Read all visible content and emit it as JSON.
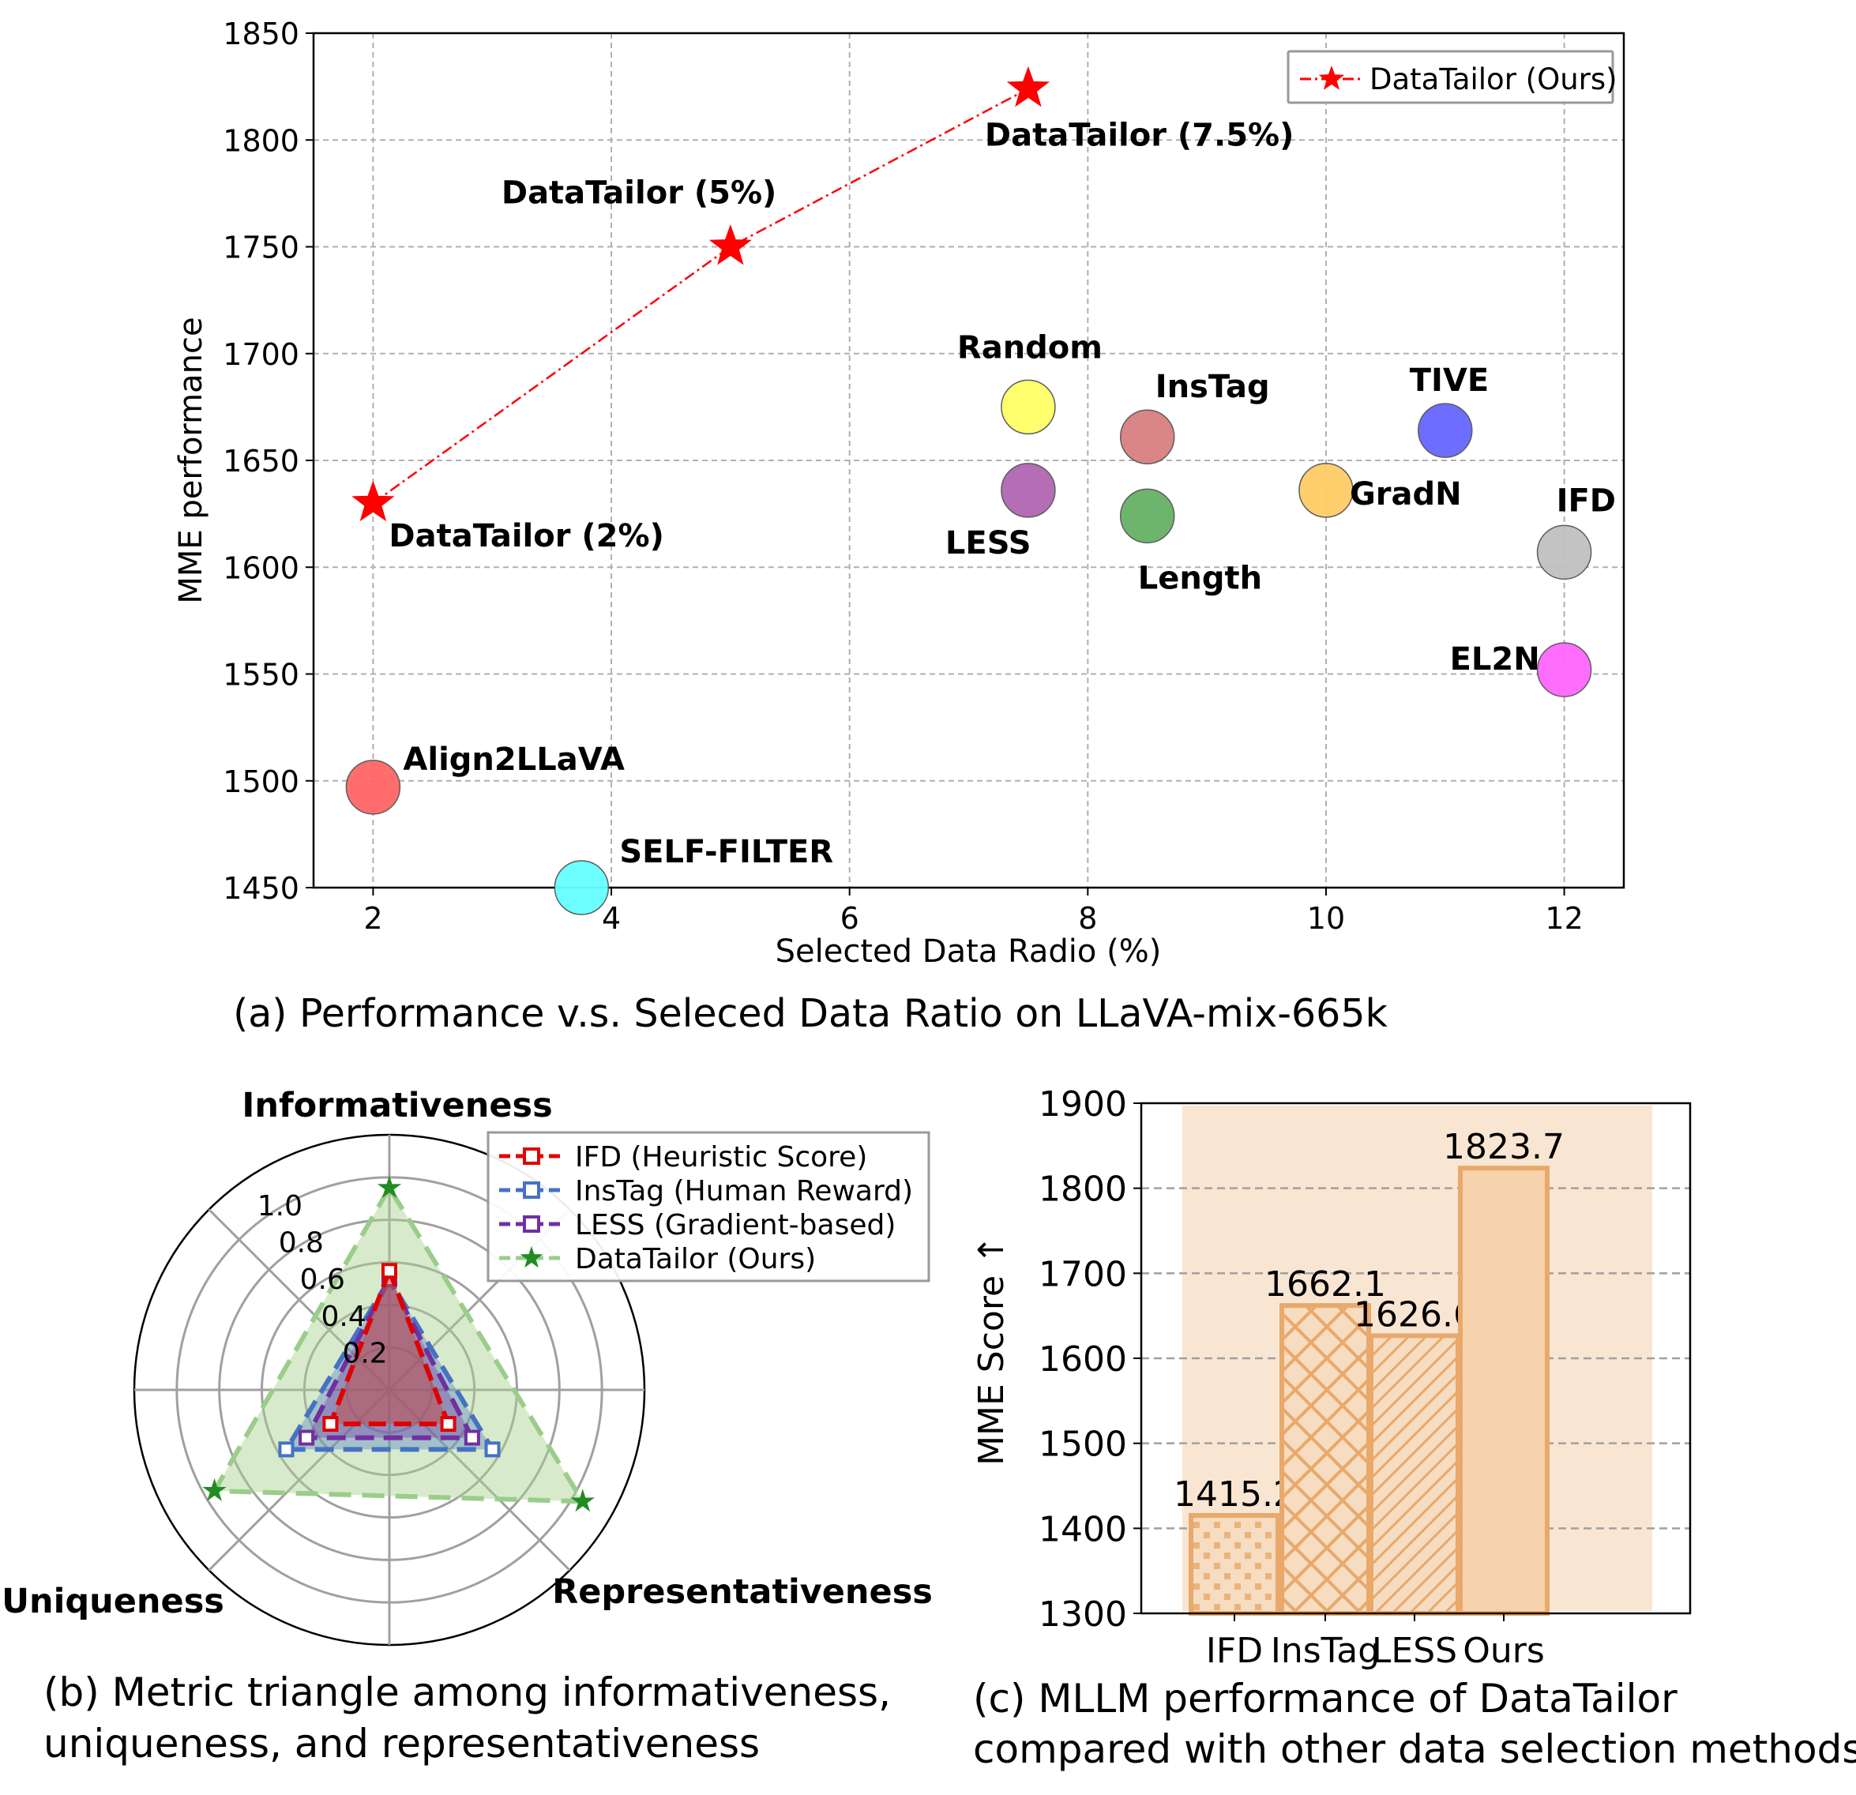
{
  "panel_a": {
    "caption": "(a) Performance v.s. Seleced Data Ratio on LLaVA-mix-665k",
    "xlabel": "Selected Data Radio (%)",
    "ylabel": "MME performance",
    "xlim": [
      1.5,
      12.5
    ],
    "ylim": [
      1450,
      1850
    ],
    "xticks": [
      2,
      4,
      6,
      8,
      10,
      12
    ],
    "yticks": [
      1450,
      1500,
      1550,
      1600,
      1650,
      1700,
      1750,
      1800,
      1850
    ],
    "legend": "DataTailor (Ours)",
    "grid": true,
    "legend_position": "top-right"
  },
  "panel_b": {
    "caption_line1": "(b) Metric triangle among informativeness,",
    "caption_line2": "uniqueness, and representativeness",
    "axes": [
      "Informativeness",
      "Uniqueness",
      "Representativeness"
    ],
    "radial_ticks": [
      "0.2",
      "0.4",
      "0.6",
      "0.8",
      "1.0"
    ],
    "legend": [
      "IFD (Heuristic Score)",
      "InsTag (Human Reward)",
      "LESS (Gradient-based)",
      "DataTailor (Ours)"
    ]
  },
  "panel_c": {
    "caption_line1": "(c) MLLM performance of DataTailor",
    "caption_line2": "compared with other data selection methods",
    "ylabel": "MME Score",
    "ylabel_arrow": "↑",
    "yticks": [
      "1300",
      "1400",
      "1500",
      "1600",
      "1700",
      "1800",
      "1900"
    ]
  },
  "chart_data": [
    {
      "type": "scatter",
      "title": "(a) Performance v.s. Seleced Data Ratio on LLaVA-mix-665k",
      "xlabel": "Selected Data Radio (%)",
      "ylabel": "MME performance",
      "xlim": [
        1.5,
        12.5
      ],
      "ylim": [
        1450,
        1850
      ],
      "series": [
        {
          "name": "DataTailor (Ours)",
          "color": "#ff0000",
          "marker": "star",
          "line": "dash-dot",
          "points": [
            {
              "x": 2,
              "y": 1630,
              "label": "DataTailor (2%)"
            },
            {
              "x": 5,
              "y": 1750,
              "label": "DataTailor (5%)"
            },
            {
              "x": 7.5,
              "y": 1824,
              "label": "DataTailor (7.5%)"
            }
          ]
        }
      ],
      "baselines": [
        {
          "label": "Random",
          "x": 7.5,
          "y": 1675,
          "color": "#ffff66"
        },
        {
          "label": "LESS",
          "x": 7.5,
          "y": 1636,
          "color": "#b266b2"
        },
        {
          "label": "InsTag",
          "x": 8.5,
          "y": 1661,
          "color": "#d98080"
        },
        {
          "label": "Length",
          "x": 8.5,
          "y": 1624,
          "color": "#66b266"
        },
        {
          "label": "GradN",
          "x": 10,
          "y": 1636,
          "color": "#ffcc66"
        },
        {
          "label": "TIVE",
          "x": 11,
          "y": 1664,
          "color": "#6666ff"
        },
        {
          "label": "IFD",
          "x": 12,
          "y": 1607,
          "color": "#c0c0c0"
        },
        {
          "label": "EL2N",
          "x": 12,
          "y": 1552,
          "color": "#ff66ff"
        },
        {
          "label": "Align2LLaVA",
          "x": 2,
          "y": 1497,
          "color": "#ff6666"
        },
        {
          "label": "SELF-FILTER",
          "x": 3.75,
          "y": 1450,
          "color": "#66ffff"
        }
      ]
    },
    {
      "type": "radar",
      "title": "(b) Metric triangle among informativeness, uniqueness, and representativeness",
      "axes": [
        "Informativeness",
        "Uniqueness",
        "Representativeness"
      ],
      "rlim": [
        0,
        1.2
      ],
      "series": [
        {
          "name": "DataTailor (Ours)",
          "color": "#a8d08d",
          "edge": "#9acd8a",
          "marker_color": "#228b22",
          "values": [
            0.95,
            0.95,
            1.05
          ]
        },
        {
          "name": "InsTag (Human Reward)",
          "color": "#4472c4",
          "values": [
            0.52,
            0.56,
            0.56
          ]
        },
        {
          "name": "LESS (Gradient-based)",
          "color": "#7030a0",
          "values": [
            0.52,
            0.45,
            0.45
          ]
        },
        {
          "name": "IFD (Heuristic Score)",
          "color": "#e00000",
          "values": [
            0.56,
            0.32,
            0.32
          ]
        }
      ]
    },
    {
      "type": "bar",
      "title": "(c) MLLM performance of DataTailor compared with other data selection methods",
      "ylabel": "MME Score",
      "ylim": [
        1300,
        1900
      ],
      "categories": [
        "IFD",
        "InsTag",
        "LESS",
        "Ours"
      ],
      "values": [
        1415.2,
        1662.1,
        1626.6,
        1823.7
      ],
      "value_labels": [
        "1415.2",
        "1662.1",
        "1626.6",
        "1823.7"
      ],
      "color": "#f2c79b",
      "edge": "#e8a96b"
    }
  ]
}
